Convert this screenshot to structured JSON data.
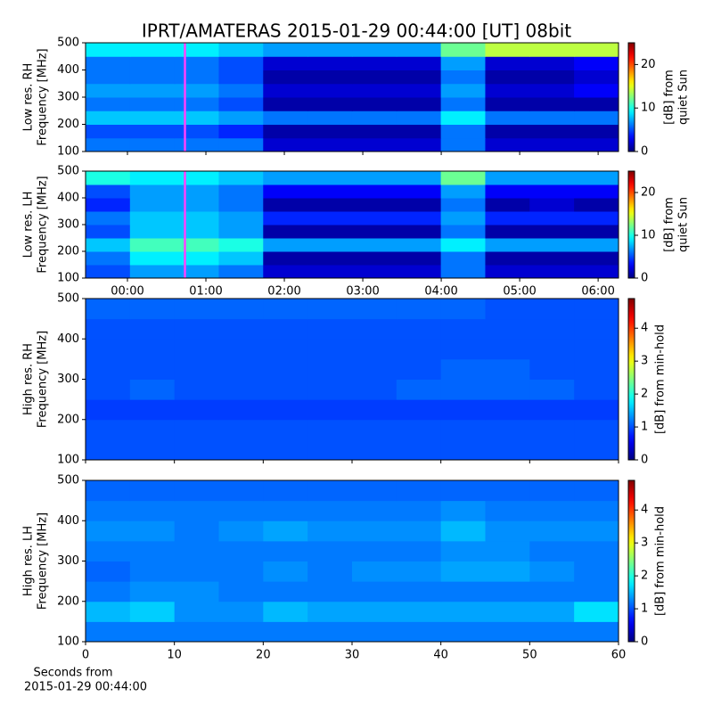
{
  "title": "IPRT/AMATERAS 2015-01-29 00:44:00 [UT]   08bit",
  "chart_data": [
    {
      "type": "heatmap",
      "ylabel": [
        "Low res. RH",
        "Frequency [MHz]"
      ],
      "x": [
        -0.251,
        0.315,
        0.881,
        1.447,
        2.013,
        2.579,
        3.146,
        3.712,
        4.278,
        4.844,
        5.41,
        5.976
      ],
      "y": [
        125,
        175,
        225,
        275,
        325,
        375,
        425,
        475
      ],
      "z": [
        [
          6,
          6,
          6,
          6,
          2,
          2,
          2,
          2,
          6,
          2,
          2,
          2
        ],
        [
          5,
          5,
          5,
          4,
          1,
          1,
          1,
          1,
          6,
          1,
          1,
          1
        ],
        [
          8,
          8,
          8,
          7,
          6,
          6,
          6,
          6,
          9,
          6,
          6,
          6
        ],
        [
          6,
          6,
          6,
          5,
          1,
          1,
          1,
          1,
          6,
          1,
          1,
          1
        ],
        [
          7,
          7,
          7,
          6,
          2,
          2,
          2,
          2,
          7,
          2,
          2,
          3
        ],
        [
          6,
          6,
          6,
          5,
          1,
          1,
          1,
          1,
          6,
          1,
          1,
          2
        ],
        [
          6,
          6,
          6,
          5,
          2,
          2,
          2,
          2,
          7,
          2,
          2,
          3
        ],
        [
          9,
          9,
          9,
          8,
          7,
          7,
          7,
          7,
          12,
          14,
          14,
          14
        ]
      ],
      "xlim": [
        -0.534,
        6.26
      ],
      "xticks": [
        0,
        1,
        2,
        3,
        4,
        5,
        6
      ],
      "ylim": [
        100,
        500
      ],
      "yticks": [
        100,
        200,
        300,
        400,
        500
      ],
      "marker_x": 0.733,
      "marker_color": "#ff40ff",
      "colorbar": {
        "label": [
          "[dB] from",
          "quiet Sun"
        ],
        "lim": [
          0,
          25
        ],
        "ticks": [
          0,
          10,
          20
        ]
      }
    },
    {
      "type": "heatmap",
      "ylabel": [
        "Low res. LH",
        "Frequency [MHz]"
      ],
      "x": [
        -0.251,
        0.315,
        0.881,
        1.447,
        2.013,
        2.579,
        3.146,
        3.712,
        4.278,
        4.844,
        5.41,
        5.976
      ],
      "y": [
        125,
        175,
        225,
        275,
        325,
        375,
        425,
        475
      ],
      "z": [
        [
          5,
          7,
          7,
          6,
          2,
          2,
          2,
          2,
          6,
          2,
          2,
          2
        ],
        [
          6,
          9,
          9,
          8,
          1,
          1,
          1,
          1,
          6,
          1,
          1,
          1
        ],
        [
          8,
          11,
          11,
          10,
          7,
          7,
          7,
          7,
          9,
          7,
          7,
          7
        ],
        [
          5,
          8,
          8,
          7,
          1,
          1,
          1,
          1,
          6,
          1,
          1,
          1
        ],
        [
          6,
          8,
          8,
          7,
          4,
          4,
          4,
          4,
          7,
          4,
          4,
          4
        ],
        [
          4,
          7,
          7,
          6,
          1,
          1,
          1,
          1,
          6,
          1,
          2,
          1
        ],
        [
          5,
          7,
          7,
          6,
          3,
          3,
          3,
          3,
          7,
          3,
          3,
          3
        ],
        [
          10,
          9,
          9,
          8,
          7,
          7,
          7,
          7,
          12,
          7,
          7,
          7
        ]
      ],
      "xlim": [
        -0.534,
        6.26
      ],
      "xticks": [
        {
          "value": 0,
          "label": "00:00"
        },
        {
          "value": 1,
          "label": "01:00"
        },
        {
          "value": 2,
          "label": "02:00"
        },
        {
          "value": 3,
          "label": "03:00"
        },
        {
          "value": 4,
          "label": "04:00"
        },
        {
          "value": 5,
          "label": "05:00"
        },
        {
          "value": 6,
          "label": "06:00"
        }
      ],
      "ylim": [
        100,
        500
      ],
      "yticks": [
        100,
        200,
        300,
        400,
        500
      ],
      "marker_x": 0.733,
      "marker_color": "#ff40ff",
      "colorbar": {
        "label": [
          "[dB] from",
          "quiet Sun"
        ],
        "lim": [
          0,
          25
        ],
        "ticks": [
          0,
          10,
          20
        ]
      }
    },
    {
      "type": "heatmap",
      "ylabel": [
        "High res. RH",
        "Frequency [MHz]"
      ],
      "x": [
        2.5,
        7.5,
        12.5,
        17.5,
        22.5,
        27.5,
        32.5,
        37.5,
        42.5,
        47.5,
        52.5,
        57.5
      ],
      "y": [
        125,
        175,
        225,
        275,
        325,
        375,
        425,
        475
      ],
      "z": [
        [
          1.0,
          1.0,
          1.0,
          1.0,
          1.0,
          1.0,
          1.0,
          1.0,
          1.0,
          1.0,
          1.0,
          1.0
        ],
        [
          1.0,
          1.0,
          1.0,
          1.0,
          1.0,
          1.0,
          1.0,
          1.0,
          1.0,
          1.0,
          1.0,
          1.0
        ],
        [
          0.9,
          0.9,
          0.9,
          0.9,
          0.9,
          0.9,
          0.9,
          0.9,
          0.9,
          0.9,
          0.9,
          0.9
        ],
        [
          1.0,
          1.1,
          1.0,
          1.0,
          1.0,
          1.0,
          1.0,
          1.1,
          1.1,
          1.1,
          1.1,
          1.0
        ],
        [
          1.0,
          1.0,
          1.0,
          1.0,
          1.0,
          1.0,
          1.0,
          1.0,
          1.1,
          1.1,
          1.0,
          1.0
        ],
        [
          1.0,
          1.0,
          1.0,
          1.0,
          1.0,
          1.0,
          1.0,
          1.0,
          1.0,
          1.0,
          1.0,
          1.0
        ],
        [
          1.0,
          1.0,
          1.0,
          1.0,
          1.0,
          1.0,
          1.0,
          1.0,
          1.0,
          1.0,
          1.0,
          1.0
        ],
        [
          1.1,
          1.1,
          1.1,
          1.1,
          1.1,
          1.1,
          1.1,
          1.1,
          1.1,
          1.0,
          1.0,
          1.0
        ]
      ],
      "xlim": [
        0,
        60
      ],
      "xticks": [
        0,
        10,
        20,
        30,
        40,
        50,
        60
      ],
      "ylim": [
        100,
        500
      ],
      "yticks": [
        100,
        200,
        300,
        400,
        500
      ],
      "colorbar": {
        "label": [
          "[dB] from min-hold"
        ],
        "lim": [
          0,
          4.9
        ],
        "ticks": [
          0,
          1,
          2,
          3,
          4
        ]
      }
    },
    {
      "type": "heatmap",
      "ylabel": [
        "High res. LH",
        "Frequency [MHz]"
      ],
      "xlabel": [
        "Seconds from",
        "2015-01-29 00:44:00"
      ],
      "x": [
        2.5,
        7.5,
        12.5,
        17.5,
        22.5,
        27.5,
        32.5,
        37.5,
        42.5,
        47.5,
        52.5,
        57.5
      ],
      "y": [
        125,
        175,
        225,
        275,
        325,
        375,
        425,
        475
      ],
      "z": [
        [
          1.2,
          1.2,
          1.2,
          1.2,
          1.2,
          1.2,
          1.2,
          1.2,
          1.2,
          1.2,
          1.2,
          1.2
        ],
        [
          1.5,
          1.6,
          1.3,
          1.3,
          1.5,
          1.4,
          1.4,
          1.4,
          1.4,
          1.4,
          1.4,
          1.7
        ],
        [
          1.2,
          1.3,
          1.3,
          1.2,
          1.2,
          1.2,
          1.2,
          1.2,
          1.2,
          1.2,
          1.2,
          1.2
        ],
        [
          1.1,
          1.2,
          1.2,
          1.2,
          1.3,
          1.2,
          1.3,
          1.3,
          1.4,
          1.4,
          1.3,
          1.2
        ],
        [
          1.2,
          1.2,
          1.2,
          1.2,
          1.2,
          1.2,
          1.2,
          1.2,
          1.3,
          1.3,
          1.2,
          1.2
        ],
        [
          1.3,
          1.3,
          1.2,
          1.3,
          1.4,
          1.3,
          1.3,
          1.3,
          1.5,
          1.3,
          1.3,
          1.3
        ],
        [
          1.2,
          1.2,
          1.2,
          1.2,
          1.2,
          1.2,
          1.2,
          1.2,
          1.3,
          1.2,
          1.2,
          1.2
        ],
        [
          1.1,
          1.1,
          1.1,
          1.1,
          1.1,
          1.1,
          1.1,
          1.1,
          1.1,
          1.1,
          1.1,
          1.1
        ]
      ],
      "xlim": [
        0,
        60
      ],
      "xticks": [
        0,
        10,
        20,
        30,
        40,
        50,
        60
      ],
      "ylim": [
        100,
        500
      ],
      "yticks": [
        100,
        200,
        300,
        400,
        500
      ],
      "colorbar": {
        "label": [
          "[dB] from min-hold"
        ],
        "lim": [
          0,
          4.9
        ],
        "ticks": [
          0,
          1,
          2,
          3,
          4
        ]
      }
    }
  ]
}
